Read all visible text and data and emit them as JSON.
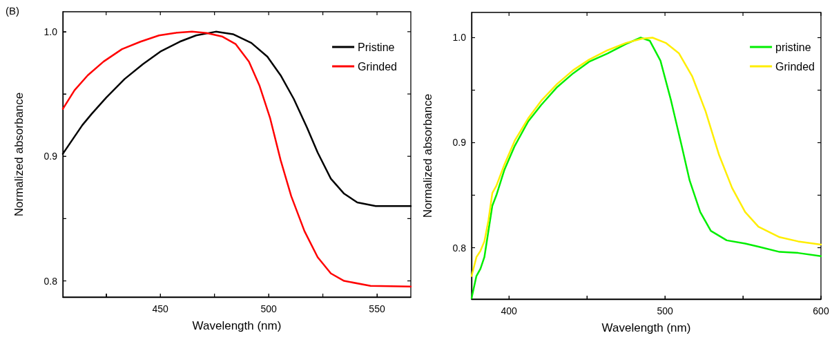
{
  "chart_data": [
    {
      "type": "line",
      "xlabel": "Wavelength (nm)",
      "ylabel": "Normalized absorbance",
      "annotations": [
        "(B)"
      ],
      "legend": "top right",
      "marker": "none",
      "line_style": "solid",
      "xlim": [
        405,
        565.6
      ],
      "ylim": [
        0.787,
        1.016
      ],
      "xticks": [
        {
          "value": 425,
          "label": null
        },
        450,
        {
          "value": 475,
          "label": null
        },
        500,
        {
          "value": 525,
          "label": null
        },
        550
      ],
      "yticks": [
        {
          "value": 0.8,
          "label": "0.8"
        },
        {
          "value": 0.85,
          "label": null
        },
        {
          "value": 0.9,
          "label": "0.9"
        },
        {
          "value": 0.95,
          "label": null
        },
        {
          "value": 1.0,
          "label": "1.0"
        }
      ],
      "series": [
        {
          "name": "Pristine",
          "color": "#000000",
          "x": [
            405,
            414,
            418.3,
            425,
            433.5,
            442,
            450,
            459,
            466.5,
            475.6,
            483.5,
            492,
            499.4,
            505.5,
            511.6,
            517.7,
            522.6,
            528.7,
            534.8,
            540.9,
            549.4,
            565.6
          ],
          "values": [
            0.902,
            0.925,
            0.934,
            0.947,
            0.962,
            0.974,
            0.984,
            0.992,
            0.997,
            1.0,
            0.998,
            0.991,
            0.98,
            0.965,
            0.946,
            0.923,
            0.903,
            0.882,
            0.87,
            0.863,
            0.86,
            0.86
          ]
        },
        {
          "name": "Grinded",
          "color": "#ff0000",
          "x": [
            405,
            410.4,
            416.5,
            423.8,
            432.3,
            440.9,
            449.4,
            456.7,
            464.6,
            471.3,
            478.7,
            484.8,
            490.9,
            495.7,
            500.6,
            505.5,
            510.4,
            516.5,
            522.6,
            528.7,
            534.8,
            547,
            565.6
          ],
          "values": [
            0.938,
            0.953,
            0.965,
            0.976,
            0.986,
            0.992,
            0.997,
            0.999,
            1.0,
            0.999,
            0.996,
            0.99,
            0.976,
            0.957,
            0.931,
            0.897,
            0.868,
            0.84,
            0.819,
            0.806,
            0.8,
            0.796,
            0.7955
          ]
        }
      ]
    },
    {
      "type": "line",
      "xlabel": "Wavelength (nm)",
      "ylabel": "Normalized absorbance",
      "legend": "top right",
      "marker": "none",
      "line_style": "solid",
      "xlim": [
        376,
        600
      ],
      "ylim": [
        0.751,
        1.024
      ],
      "xticks": [
        400,
        {
          "value": 450,
          "label": null
        },
        500,
        {
          "value": 550,
          "label": null
        },
        600
      ],
      "yticks": [
        {
          "value": 0.8,
          "label": "0.8"
        },
        {
          "value": 0.85,
          "label": null
        },
        {
          "value": 0.9,
          "label": "0.9"
        },
        {
          "value": 0.95,
          "label": null
        },
        {
          "value": 1.0,
          "label": "1.0"
        }
      ],
      "series": [
        {
          "name": "pristine",
          "color": "#00ee00",
          "x": [
            376,
            379.1,
            381.7,
            384.2,
            386.8,
            389.3,
            391.9,
            397,
            403.7,
            412.2,
            420.7,
            430.9,
            441.1,
            451.3,
            463.2,
            475,
            484.4,
            490.3,
            497.1,
            503.9,
            510.7,
            515.8,
            522.6,
            529.4,
            539.6,
            551.4,
            559.9,
            573.5,
            585.4,
            600
          ],
          "values": [
            0.752,
            0.773,
            0.78,
            0.791,
            0.816,
            0.84,
            0.85,
            0.874,
            0.897,
            0.92,
            0.936,
            0.953,
            0.966,
            0.977,
            0.985,
            0.994,
            1.0,
            0.997,
            0.978,
            0.94,
            0.897,
            0.864,
            0.834,
            0.816,
            0.807,
            0.804,
            0.801,
            0.796,
            0.795,
            0.792
          ]
        },
        {
          "name": "Grinded",
          "color": "#ffee00",
          "x": [
            376,
            379.1,
            381.7,
            384.2,
            386.8,
            389.3,
            391.9,
            397,
            403.7,
            412.2,
            420.7,
            430.9,
            441.1,
            451.3,
            463.2,
            475,
            485.2,
            492,
            500.5,
            509,
            517.5,
            526,
            534.5,
            543,
            551.4,
            559.9,
            573.5,
            585.4,
            600
          ],
          "values": [
            0.773,
            0.791,
            0.797,
            0.806,
            0.826,
            0.852,
            0.859,
            0.879,
            0.902,
            0.923,
            0.94,
            0.956,
            0.969,
            0.979,
            0.988,
            0.995,
            0.999,
            1.0,
            0.995,
            0.985,
            0.963,
            0.93,
            0.889,
            0.857,
            0.834,
            0.82,
            0.81,
            0.806,
            0.803
          ]
        }
      ]
    }
  ]
}
